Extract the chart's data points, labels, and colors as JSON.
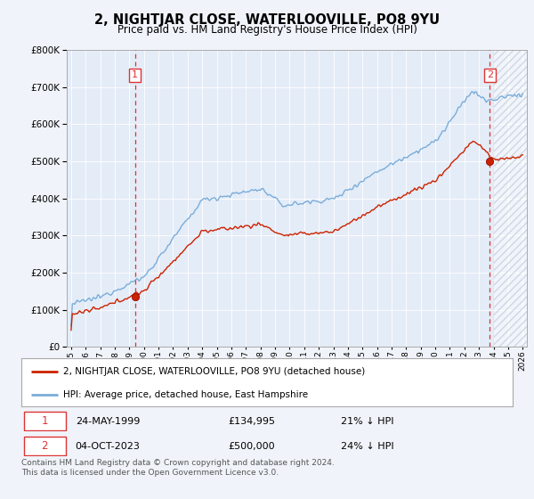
{
  "title": "2, NIGHTJAR CLOSE, WATERLOOVILLE, PO8 9YU",
  "subtitle": "Price paid vs. HM Land Registry's House Price Index (HPI)",
  "background_color": "#f0f4fa",
  "plot_bg_color": "#e4ecf7",
  "hpi_line_color": "#7aaddb",
  "price_line_color": "#cc2200",
  "vline_color": "#dd3333",
  "sale1_year": 1999.38,
  "sale1_price": 134995,
  "sale2_year": 2023.75,
  "sale2_price": 500000,
  "sale1_label": "1",
  "sale2_label": "2",
  "sale1_text": "24-MAY-1999",
  "sale1_amount": "£134,995",
  "sale1_hpi": "21% ↓ HPI",
  "sale2_text": "04-OCT-2023",
  "sale2_amount": "£500,000",
  "sale2_hpi": "24% ↓ HPI",
  "legend_line1": "2, NIGHTJAR CLOSE, WATERLOOVILLE, PO8 9YU (detached house)",
  "legend_line2": "HPI: Average price, detached house, East Hampshire",
  "footer": "Contains HM Land Registry data © Crown copyright and database right 2024.\nThis data is licensed under the Open Government Licence v3.0.",
  "ylim": [
    0,
    800000
  ],
  "yticks": [
    0,
    100000,
    200000,
    300000,
    400000,
    500000,
    600000,
    700000,
    800000
  ],
  "xlim_start": 1994.7,
  "xlim_end": 2026.3,
  "hatch_start": 2024.0
}
